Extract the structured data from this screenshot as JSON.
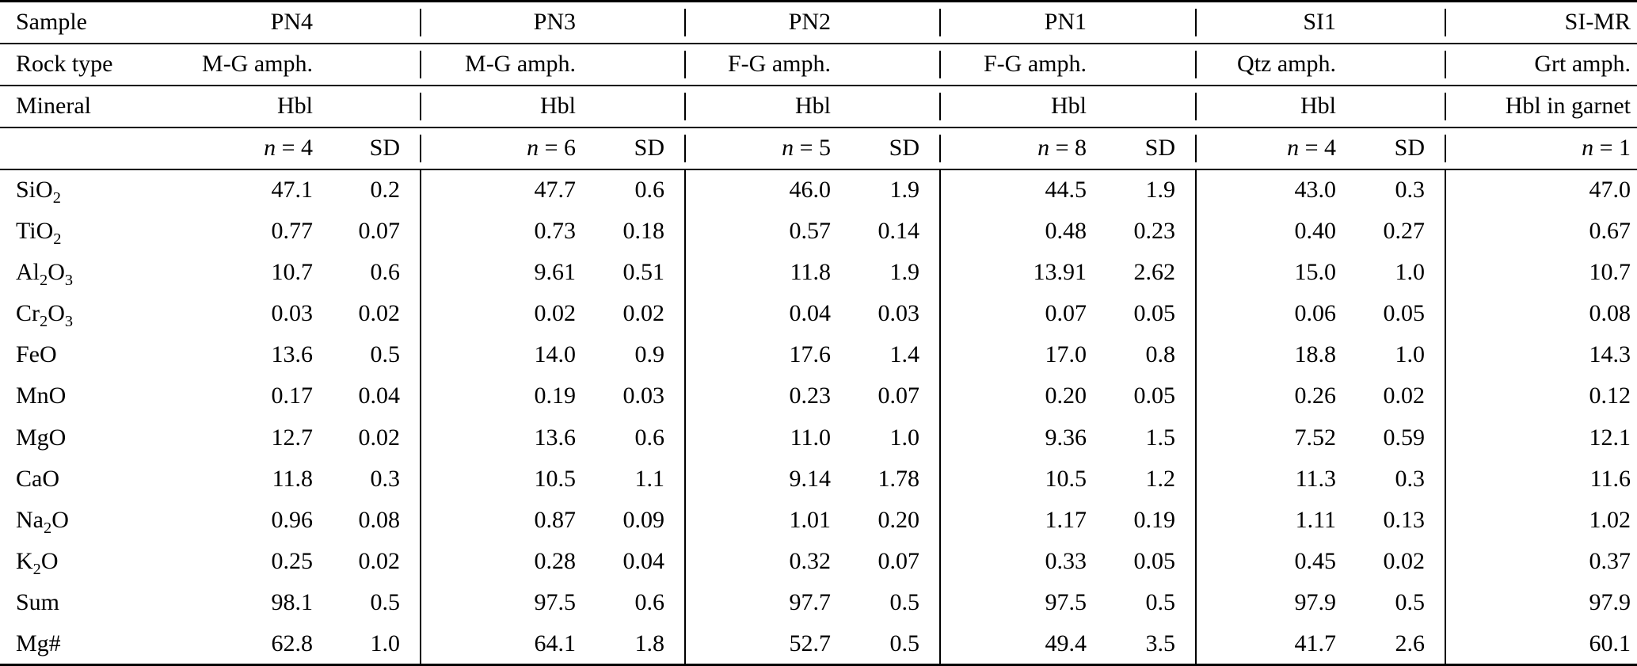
{
  "table": {
    "row_header_labels": {
      "sample": "Sample",
      "rock_type": "Rock type",
      "mineral": "Mineral"
    },
    "groups": [
      {
        "sample": "PN4",
        "rock_type": "M-G amph.",
        "mineral": "Hbl",
        "n_var": "n",
        "n_rest": " = 4",
        "sd_label": "SD"
      },
      {
        "sample": "PN3",
        "rock_type": "M-G amph.",
        "mineral": "Hbl",
        "n_var": "n",
        "n_rest": " = 6",
        "sd_label": "SD"
      },
      {
        "sample": "PN2",
        "rock_type": "F-G amph.",
        "mineral": "Hbl",
        "n_var": "n",
        "n_rest": " = 5",
        "sd_label": "SD"
      },
      {
        "sample": "PN1",
        "rock_type": "F-G amph.",
        "mineral": "Hbl",
        "n_var": "n",
        "n_rest": " = 8",
        "sd_label": "SD"
      },
      {
        "sample": "SI1",
        "rock_type": "Qtz amph.",
        "mineral": "Hbl",
        "n_var": "n",
        "n_rest": " = 4",
        "sd_label": "SD"
      },
      {
        "sample": "SI-MR",
        "rock_type": "Grt amph.",
        "mineral": "Hbl in garnet",
        "n_var": "n",
        "n_rest": " = 1",
        "sd_label": null
      }
    ],
    "rows": [
      {
        "label_parts": [
          {
            "t": "SiO"
          },
          {
            "t": "2",
            "sub": true
          }
        ],
        "values": [
          "47.1",
          "0.2",
          "47.7",
          "0.6",
          "46.0",
          "1.9",
          "44.5",
          "1.9",
          "43.0",
          "0.3",
          "47.0"
        ]
      },
      {
        "label_parts": [
          {
            "t": "TiO"
          },
          {
            "t": "2",
            "sub": true
          }
        ],
        "values": [
          "0.77",
          "0.07",
          "0.73",
          "0.18",
          "0.57",
          "0.14",
          "0.48",
          "0.23",
          "0.40",
          "0.27",
          "0.67"
        ]
      },
      {
        "label_parts": [
          {
            "t": "Al"
          },
          {
            "t": "2",
            "sub": true
          },
          {
            "t": "O"
          },
          {
            "t": "3",
            "sub": true
          }
        ],
        "values": [
          "10.7",
          "0.6",
          "9.61",
          "0.51",
          "11.8",
          "1.9",
          "13.91",
          "2.62",
          "15.0",
          "1.0",
          "10.7"
        ]
      },
      {
        "label_parts": [
          {
            "t": "Cr"
          },
          {
            "t": "2",
            "sub": true
          },
          {
            "t": "O"
          },
          {
            "t": "3",
            "sub": true
          }
        ],
        "values": [
          "0.03",
          "0.02",
          "0.02",
          "0.02",
          "0.04",
          "0.03",
          "0.07",
          "0.05",
          "0.06",
          "0.05",
          "0.08"
        ]
      },
      {
        "label_parts": [
          {
            "t": "FeO"
          }
        ],
        "values": [
          "13.6",
          "0.5",
          "14.0",
          "0.9",
          "17.6",
          "1.4",
          "17.0",
          "0.8",
          "18.8",
          "1.0",
          "14.3"
        ]
      },
      {
        "label_parts": [
          {
            "t": "MnO"
          }
        ],
        "values": [
          "0.17",
          "0.04",
          "0.19",
          "0.03",
          "0.23",
          "0.07",
          "0.20",
          "0.05",
          "0.26",
          "0.02",
          "0.12"
        ]
      },
      {
        "label_parts": [
          {
            "t": "MgO"
          }
        ],
        "values": [
          "12.7",
          "0.02",
          "13.6",
          "0.6",
          "11.0",
          "1.0",
          "9.36",
          "1.5",
          "7.52",
          "0.59",
          "12.1"
        ]
      },
      {
        "label_parts": [
          {
            "t": "CaO"
          }
        ],
        "values": [
          "11.8",
          "0.3",
          "10.5",
          "1.1",
          "9.14",
          "1.78",
          "10.5",
          "1.2",
          "11.3",
          "0.3",
          "11.6"
        ]
      },
      {
        "label_parts": [
          {
            "t": "Na"
          },
          {
            "t": "2",
            "sub": true
          },
          {
            "t": "O"
          }
        ],
        "values": [
          "0.96",
          "0.08",
          "0.87",
          "0.09",
          "1.01",
          "0.20",
          "1.17",
          "0.19",
          "1.11",
          "0.13",
          "1.02"
        ]
      },
      {
        "label_parts": [
          {
            "t": "K"
          },
          {
            "t": "2",
            "sub": true
          },
          {
            "t": "O"
          }
        ],
        "values": [
          "0.25",
          "0.02",
          "0.28",
          "0.04",
          "0.32",
          "0.07",
          "0.33",
          "0.05",
          "0.45",
          "0.02",
          "0.37"
        ]
      },
      {
        "label_parts": [
          {
            "t": "Sum"
          }
        ],
        "values": [
          "98.1",
          "0.5",
          "97.5",
          "0.6",
          "97.7",
          "0.5",
          "97.5",
          "0.5",
          "97.9",
          "0.5",
          "97.9"
        ]
      },
      {
        "label_parts": [
          {
            "t": "Mg#"
          }
        ],
        "values": [
          "62.8",
          "1.0",
          "64.1",
          "1.8",
          "52.7",
          "0.5",
          "49.4",
          "3.5",
          "41.7",
          "2.6",
          "60.1"
        ]
      }
    ]
  }
}
